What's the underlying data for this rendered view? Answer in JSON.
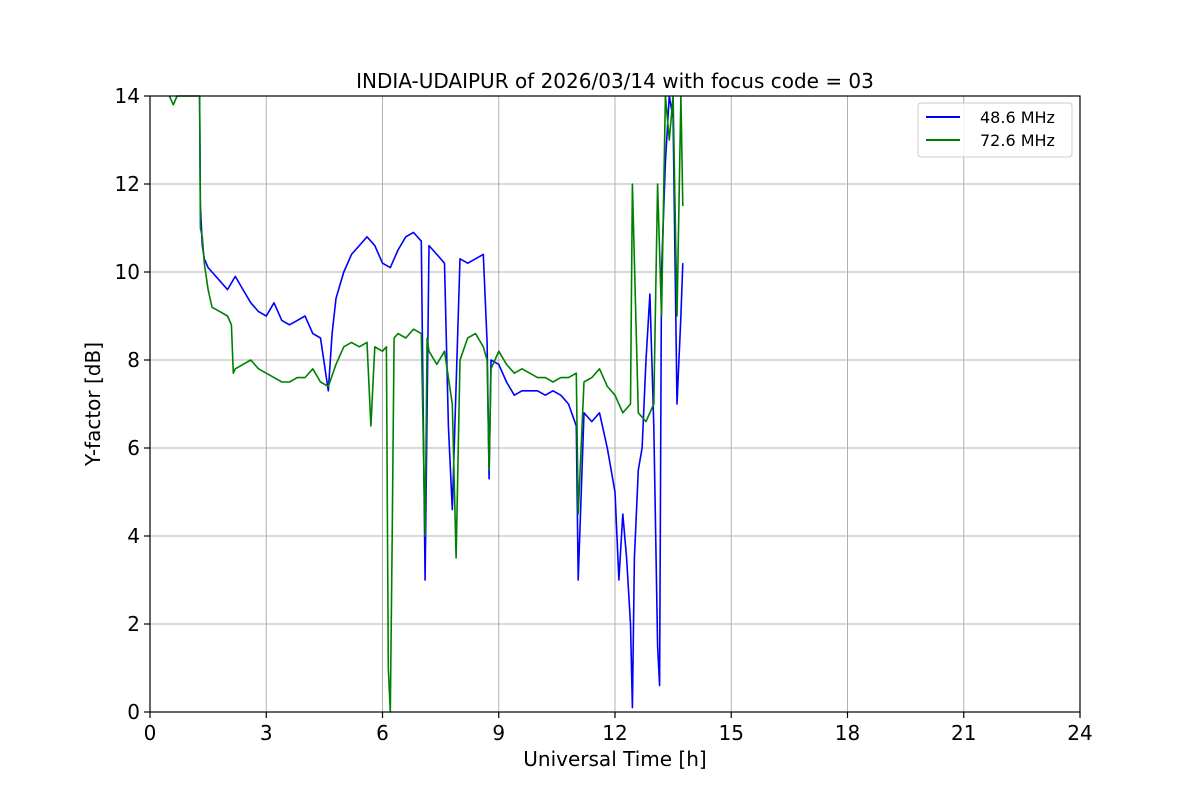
{
  "chart_data": {
    "type": "line",
    "title": "INDIA-UDAIPUR of 2026/03/14 with focus code = 03",
    "xlabel": "Universal Time [h]",
    "ylabel": "Y-factor [dB]",
    "xlim": [
      0,
      24
    ],
    "ylim": [
      0,
      14
    ],
    "x_ticks": [
      0,
      3,
      6,
      9,
      12,
      15,
      18,
      21,
      24
    ],
    "y_ticks": [
      0,
      2,
      4,
      6,
      8,
      10,
      12,
      14
    ],
    "grid": true,
    "legend_position": "top-right",
    "series": [
      {
        "name": "48.6 MHz",
        "color": "#0000ff",
        "x": [
          1.28,
          1.3,
          1.35,
          1.4,
          1.5,
          1.6,
          1.8,
          2.0,
          2.2,
          2.4,
          2.6,
          2.8,
          3.0,
          3.2,
          3.4,
          3.6,
          3.8,
          4.0,
          4.2,
          4.4,
          4.5,
          4.6,
          4.7,
          4.8,
          5.0,
          5.2,
          5.4,
          5.6,
          5.8,
          6.0,
          6.2,
          6.4,
          6.6,
          6.8,
          7.0,
          7.1,
          7.2,
          7.4,
          7.6,
          7.7,
          7.8,
          8.0,
          8.2,
          8.4,
          8.6,
          8.7,
          8.75,
          8.8,
          9.0,
          9.2,
          9.4,
          9.6,
          9.8,
          10.0,
          10.2,
          10.4,
          10.6,
          10.8,
          11.0,
          11.05,
          11.2,
          11.4,
          11.6,
          11.8,
          12.0,
          12.1,
          12.2,
          12.3,
          12.4,
          12.45,
          12.5,
          12.6,
          12.7,
          12.8,
          12.9,
          13.0,
          13.1,
          13.15,
          13.2,
          13.3,
          13.4,
          13.5,
          13.6,
          13.7,
          13.75
        ],
        "y": [
          14.0,
          11.5,
          10.6,
          10.3,
          10.1,
          10.0,
          9.8,
          9.6,
          9.9,
          9.6,
          9.3,
          9.1,
          9.0,
          9.3,
          8.9,
          8.8,
          8.9,
          9.0,
          8.6,
          8.5,
          7.9,
          7.3,
          8.6,
          9.4,
          10.0,
          10.4,
          10.6,
          10.8,
          10.6,
          10.2,
          10.1,
          10.5,
          10.8,
          10.9,
          10.7,
          3.0,
          10.6,
          10.4,
          10.2,
          6.5,
          4.6,
          10.3,
          10.2,
          10.3,
          10.4,
          8.4,
          5.3,
          8.0,
          7.9,
          7.5,
          7.2,
          7.3,
          7.3,
          7.3,
          7.2,
          7.3,
          7.2,
          7.0,
          6.5,
          3.0,
          6.8,
          6.6,
          6.8,
          6.0,
          5.0,
          3.0,
          4.5,
          3.5,
          2.0,
          0.1,
          3.5,
          5.5,
          6.0,
          8.0,
          9.5,
          6.5,
          1.5,
          0.6,
          10.0,
          12.5,
          14.0,
          13.5,
          7.0,
          9.0,
          10.2
        ]
      },
      {
        "name": "72.6 MHz",
        "color": "#008000",
        "x": [
          0.5,
          0.6,
          0.7,
          0.8,
          1.0,
          1.2,
          1.28,
          1.3,
          1.35,
          1.4,
          1.5,
          1.6,
          1.8,
          2.0,
          2.1,
          2.15,
          2.2,
          2.4,
          2.6,
          2.8,
          3.0,
          3.2,
          3.4,
          3.6,
          3.8,
          4.0,
          4.2,
          4.4,
          4.6,
          4.8,
          5.0,
          5.2,
          5.4,
          5.6,
          5.7,
          5.8,
          6.0,
          6.1,
          6.15,
          6.2,
          6.25,
          6.3,
          6.4,
          6.6,
          6.8,
          7.0,
          7.1,
          7.15,
          7.2,
          7.4,
          7.6,
          7.8,
          7.9,
          8.0,
          8.2,
          8.4,
          8.6,
          8.7,
          8.75,
          8.8,
          9.0,
          9.2,
          9.4,
          9.6,
          9.8,
          10.0,
          10.2,
          10.4,
          10.6,
          10.8,
          11.0,
          11.05,
          11.2,
          11.4,
          11.6,
          11.8,
          12.0,
          12.2,
          12.4,
          12.45,
          12.6,
          12.8,
          13.0,
          13.1,
          13.2,
          13.3,
          13.4,
          13.5,
          13.6,
          13.7,
          13.75
        ],
        "y": [
          14.0,
          13.8,
          14.0,
          14.0,
          14.0,
          14.0,
          14.0,
          11.0,
          10.8,
          10.2,
          9.6,
          9.2,
          9.1,
          9.0,
          8.8,
          7.7,
          7.8,
          7.9,
          8.0,
          7.8,
          7.7,
          7.6,
          7.5,
          7.5,
          7.6,
          7.6,
          7.8,
          7.5,
          7.4,
          7.9,
          8.3,
          8.4,
          8.3,
          8.4,
          6.5,
          8.3,
          8.2,
          8.3,
          1.0,
          0.0,
          4.0,
          8.5,
          8.6,
          8.5,
          8.7,
          8.6,
          4.0,
          8.5,
          8.2,
          7.9,
          8.2,
          7.0,
          3.5,
          8.0,
          8.5,
          8.6,
          8.3,
          8.0,
          5.5,
          7.8,
          8.2,
          7.9,
          7.7,
          7.8,
          7.7,
          7.6,
          7.6,
          7.5,
          7.6,
          7.6,
          7.7,
          4.5,
          7.5,
          7.6,
          7.8,
          7.4,
          7.2,
          6.8,
          7.0,
          12.0,
          6.8,
          6.6,
          7.0,
          12.0,
          9.0,
          14.0,
          13.0,
          14.0,
          9.0,
          14.0,
          11.5
        ]
      }
    ]
  }
}
